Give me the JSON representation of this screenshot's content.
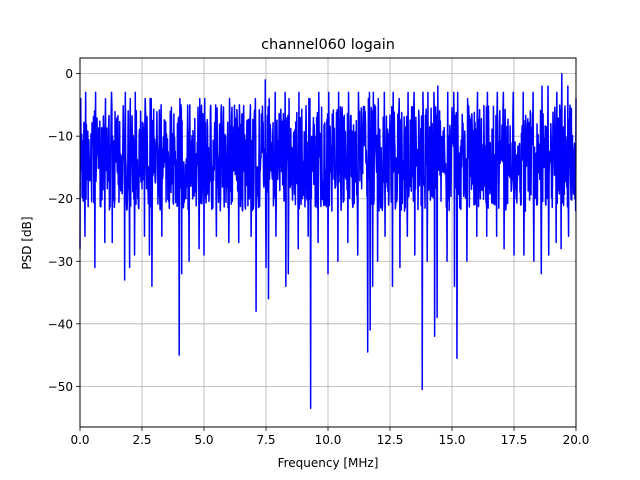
{
  "chart_data": {
    "type": "line",
    "title": "channel060 logain",
    "xlabel": "Frequency [MHz]",
    "ylabel": "PSD [dB]",
    "xlim": [
      0,
      20
    ],
    "ylim": [
      -56.5,
      2.5
    ],
    "xticks": [
      0,
      2.5,
      5,
      7.5,
      10,
      12.5,
      15,
      17.5,
      20
    ],
    "xtick_labels": [
      "0.0",
      "2.5",
      "5.0",
      "7.5",
      "10.0",
      "12.5",
      "15.0",
      "17.5",
      "20.0"
    ],
    "yticks": [
      0,
      -10,
      -20,
      -30,
      -40,
      -50
    ],
    "ytick_labels": [
      "0",
      "−10",
      "−20",
      "−30",
      "−40",
      "−50"
    ],
    "grid": true,
    "legend": "none",
    "series": [
      {
        "color": "#0000ff",
        "baseline_range": [
          -22,
          -5
        ],
        "x": [
          0.0,
          0.2,
          0.6,
          1.0,
          1.3,
          1.8,
          2.0,
          2.2,
          2.6,
          2.8,
          2.9,
          3.3,
          4.0,
          4.1,
          4.4,
          4.8,
          5.0,
          5.5,
          6.0,
          6.4,
          6.9,
          7.1,
          7.5,
          7.6,
          7.9,
          8.3,
          8.4,
          8.8,
          9.2,
          9.3,
          9.6,
          10.0,
          10.4,
          10.8,
          11.2,
          11.6,
          11.7,
          11.8,
          12.0,
          12.3,
          12.6,
          12.9,
          13.2,
          13.5,
          13.8,
          14.0,
          14.3,
          14.4,
          14.8,
          15.1,
          15.2,
          15.6,
          16.0,
          16.4,
          16.8,
          17.1,
          17.5,
          17.9,
          18.3,
          18.6,
          18.9,
          19.2,
          19.4,
          19.7,
          20.0
        ],
        "dips": [
          -28,
          -26,
          -31,
          -27,
          -27,
          -33,
          -31,
          -29,
          -26,
          -29,
          -34,
          -26,
          -45,
          -32,
          -30,
          -28,
          -29,
          -26,
          -27,
          -27,
          -26,
          -38,
          -31,
          -36,
          -26,
          -34,
          -32,
          -28,
          -26,
          -53.5,
          -27,
          -32,
          -30,
          -27,
          -29,
          -44.5,
          -41,
          -34,
          -30,
          -26,
          -34,
          -31,
          -26,
          -29,
          -50.5,
          -30,
          -42,
          -39,
          -30,
          -34,
          -45.5,
          -30,
          -26,
          -26,
          -26,
          -28,
          -29,
          -29,
          -30,
          -32,
          -29,
          -27,
          -28,
          -26,
          -27
        ],
        "peaks": [
          -4,
          -3,
          -3,
          -4,
          -3,
          -3,
          -4,
          -3,
          -4,
          -4,
          -4,
          -5,
          -4,
          -5,
          -5,
          -4,
          -4,
          -5,
          -4,
          -5,
          -5,
          -4,
          -1,
          -4,
          -3,
          -3,
          -4,
          -3,
          -4,
          -4,
          -3,
          -3,
          -3,
          -3,
          -3,
          -4,
          -3,
          -3,
          -4,
          -3,
          -3,
          -4,
          -3,
          -3,
          -3,
          -3,
          -3,
          -2,
          -3,
          -3,
          -3,
          -4,
          -3,
          -3,
          -3,
          -3,
          -3,
          -3,
          -3,
          -2,
          -2,
          -3,
          0,
          -2,
          -4
        ]
      }
    ]
  }
}
